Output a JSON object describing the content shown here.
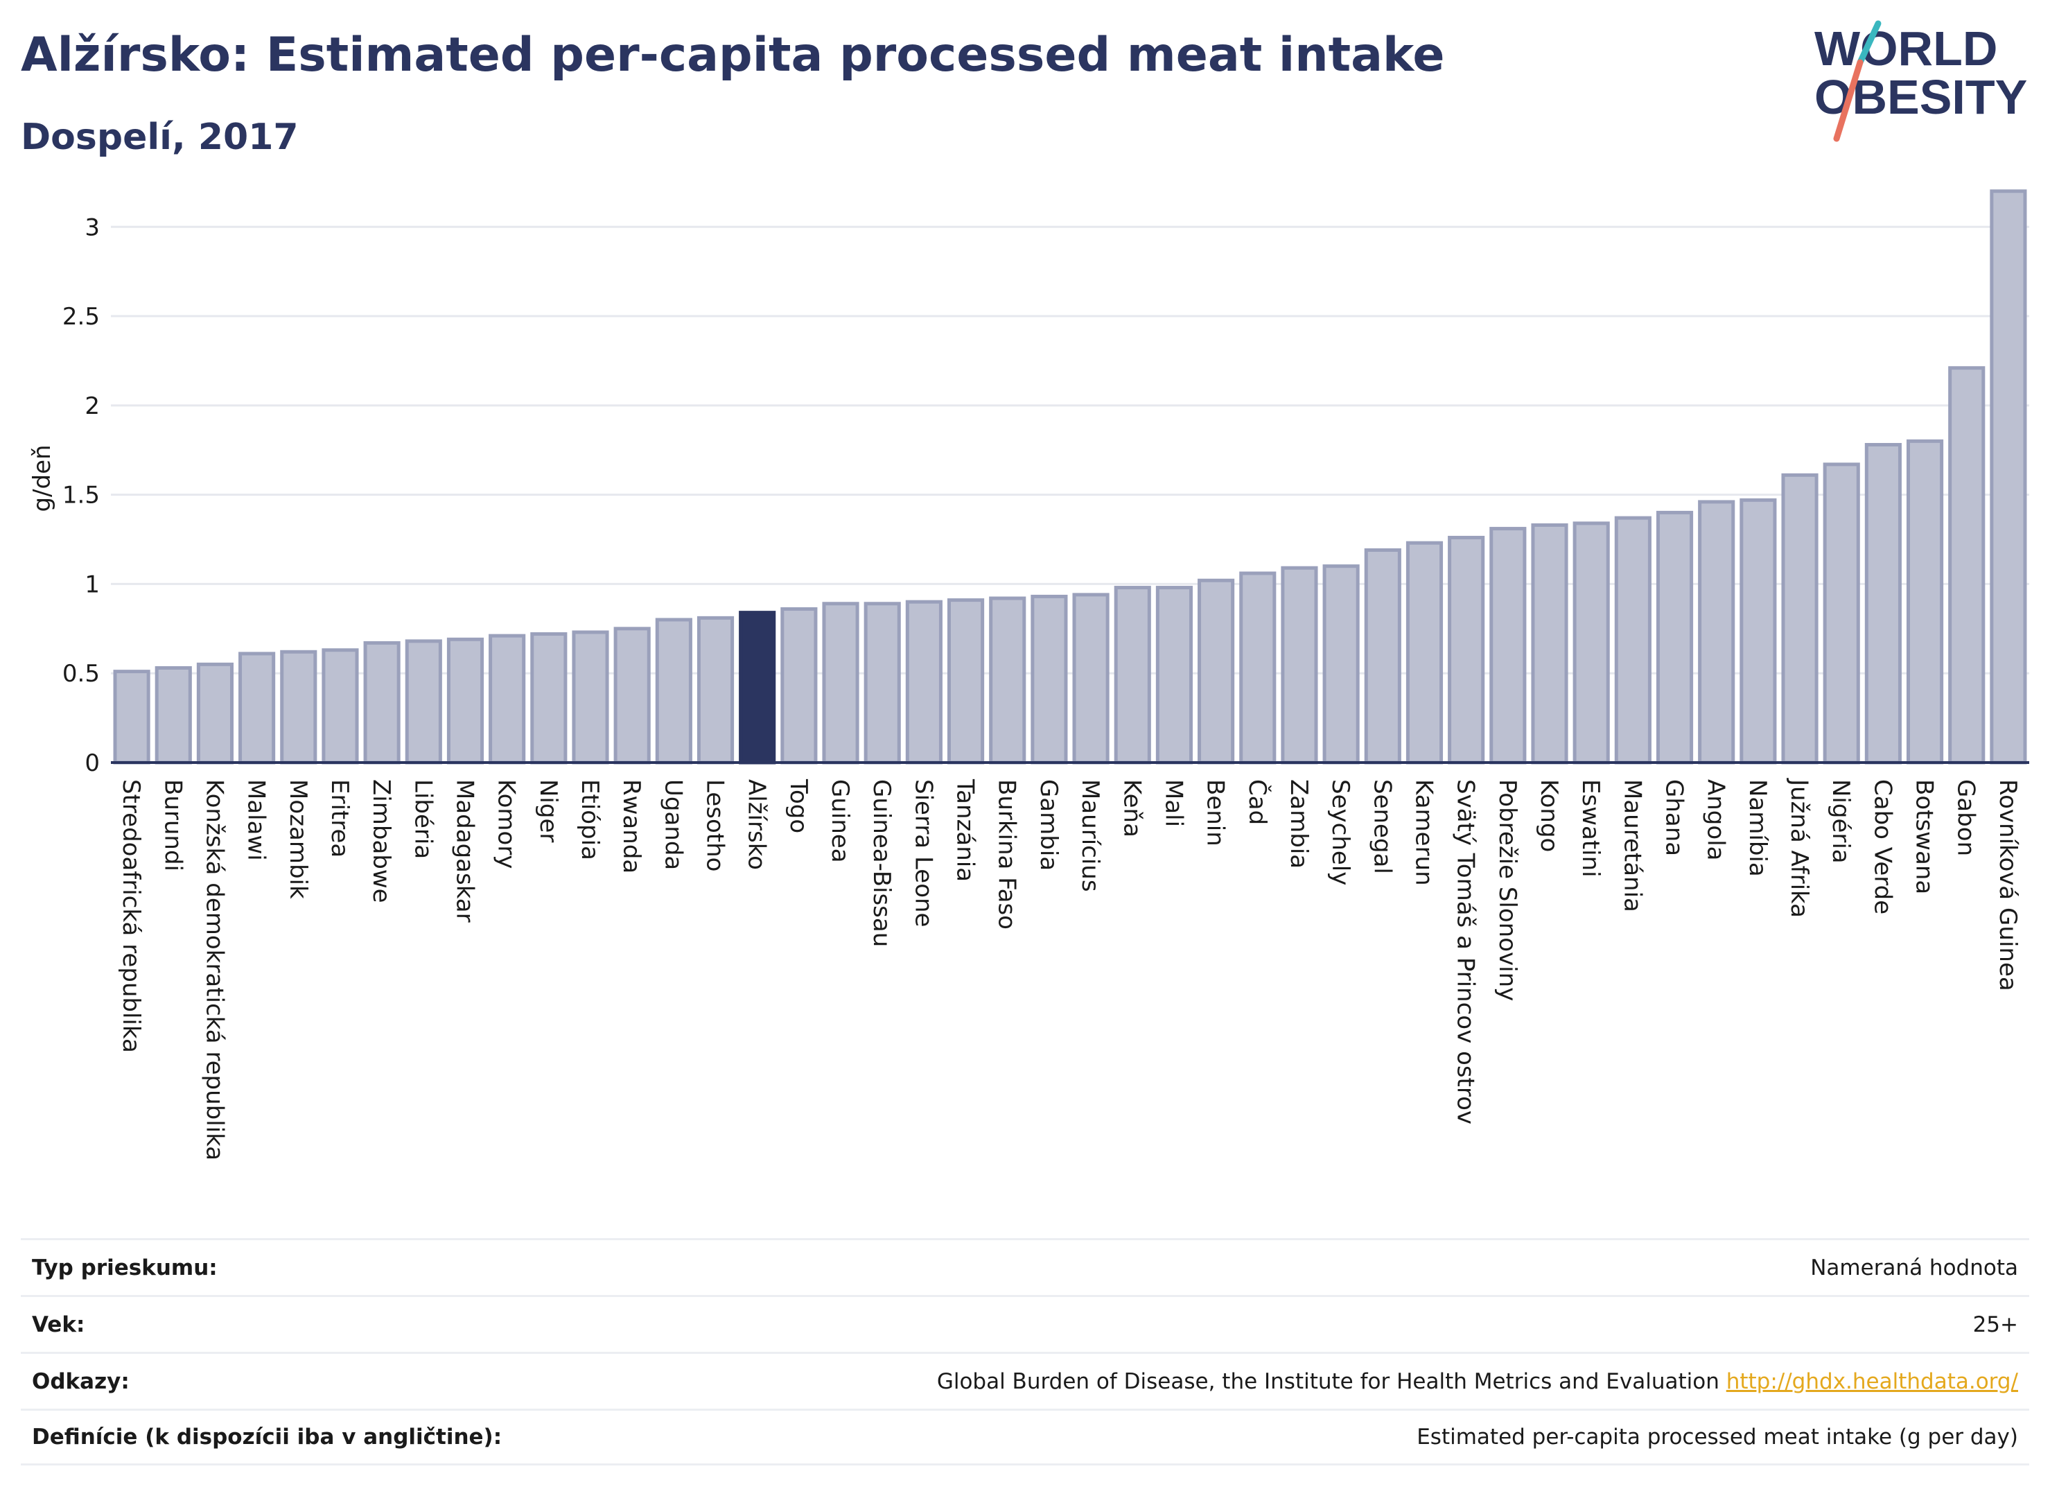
{
  "header": {
    "title": "Alžírsko: Estimated per-capita processed meat intake",
    "subtitle": "Dospelí, 2017"
  },
  "logo": {
    "line1": "WORLD",
    "line2": "OBESITY",
    "colors": {
      "text": "#2b3560",
      "slash_teal": "#3ab7bf",
      "slash_coral": "#e8725f"
    }
  },
  "colors": {
    "bar": "#bcc0d1",
    "bar_stroke": "#9aa0bb",
    "highlight": "#2b3560",
    "grid": "#e6e8ee",
    "axis": "#2b3560"
  },
  "chart_data": {
    "type": "bar",
    "ylabel": "g/deň",
    "ylim": [
      0,
      3.3
    ],
    "yticks": [
      0,
      0.5,
      1,
      1.5,
      2,
      2.5,
      3
    ],
    "ytick_labels": [
      "0",
      "0.5",
      "1",
      "1.5",
      "2",
      "2.5",
      "3"
    ],
    "grid": true,
    "highlight": "Alžírsko",
    "categories": [
      "Stredoafrická republika",
      "Burundi",
      "Konžská demokratická republika",
      "Malawi",
      "Mozambik",
      "Eritrea",
      "Zimbabwe",
      "Libéria",
      "Madagaskar",
      "Komory",
      "Niger",
      "Etiópia",
      "Rwanda",
      "Uganda",
      "Lesotho",
      "Alžírsko",
      "Togo",
      "Guinea",
      "Guinea-Bissau",
      "Sierra Leone",
      "Tanzánia",
      "Burkina Faso",
      "Gambia",
      "Maurícius",
      "Keňa",
      "Mali",
      "Benin",
      "Čad",
      "Zambia",
      "Seychely",
      "Senegal",
      "Kamerun",
      "Svätý Tomáš a Princov ostrov",
      "Pobrežie Slonoviny",
      "Kongo",
      "Eswatini",
      "Mauretánia",
      "Ghana",
      "Angola",
      "Namíbia",
      "Južná Afrika",
      "Nigéria",
      "Cabo Verde",
      "Botswana",
      "Gabon",
      "Rovníková Guinea"
    ],
    "values": [
      0.51,
      0.53,
      0.55,
      0.61,
      0.62,
      0.63,
      0.67,
      0.68,
      0.69,
      0.71,
      0.72,
      0.73,
      0.75,
      0.8,
      0.81,
      0.84,
      0.86,
      0.89,
      0.89,
      0.9,
      0.91,
      0.92,
      0.93,
      0.94,
      0.98,
      0.98,
      1.02,
      1.06,
      1.09,
      1.1,
      1.19,
      1.23,
      1.26,
      1.31,
      1.33,
      1.34,
      1.37,
      1.4,
      1.46,
      1.47,
      1.61,
      1.67,
      1.78,
      1.8,
      2.21,
      3.2
    ]
  },
  "footer": {
    "rows": [
      {
        "label": "Typ prieskumu:",
        "value": "Nameraná hodnota",
        "link": ""
      },
      {
        "label": "Vek:",
        "value": "25+",
        "link": ""
      },
      {
        "label": "Odkazy:",
        "value": "Global Burden of Disease, the Institute for Health Metrics and Evaluation ",
        "link": "http://ghdx.healthdata.org/"
      },
      {
        "label": "Definície (k dispozícii iba v angličtine):",
        "value": "Estimated per-capita processed meat intake (g per day)",
        "link": ""
      }
    ]
  }
}
